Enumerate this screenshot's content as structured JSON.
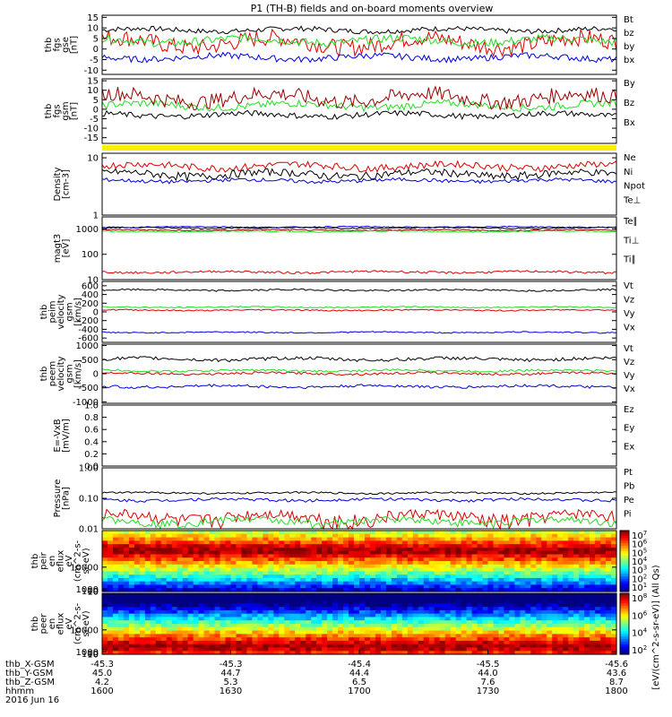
{
  "title": "P1 (TH-B) fields and on-board moments overview",
  "colors": {
    "black": "#000000",
    "red": "#dd0000",
    "green": "#22dd22",
    "blue": "#0000dd",
    "darkred": "#990000",
    "yellow": "#ffee00"
  },
  "chart_data": [
    {
      "type": "line",
      "ylabel": [
        "thb",
        "fgs",
        "gse",
        "[nT]"
      ],
      "yticks": [
        "15",
        "10",
        "5",
        "0",
        "-5",
        "-10"
      ],
      "ylim": [
        -12,
        16
      ],
      "series": [
        {
          "name": "Bt",
          "color": "black",
          "level": 9,
          "noise": 1.2
        },
        {
          "name": "bz",
          "color": "red",
          "level": 3,
          "noise": 4
        },
        {
          "name": "by",
          "color": "green",
          "level": 4,
          "noise": 2
        },
        {
          "name": "bx",
          "color": "blue",
          "level": -4,
          "noise": 1.5
        }
      ]
    },
    {
      "type": "line",
      "ylabel": [
        "thb",
        "fgs",
        "gsm",
        "[nT]"
      ],
      "yticks": [
        "15",
        "10",
        "5",
        "0",
        "-5",
        "-10",
        "-15"
      ],
      "ylim": [
        -18,
        16
      ],
      "series": [
        {
          "name": "By",
          "color": "green",
          "level": 2,
          "noise": 2
        },
        {
          "name": "Bz",
          "color": "darkred",
          "level": 6,
          "noise": 4
        },
        {
          "name": "Bx",
          "color": "black",
          "level": -3,
          "noise": 1.5
        }
      ]
    },
    {
      "type": "line",
      "log": true,
      "ylabel": [
        "Density",
        "[cm-3]"
      ],
      "yticks": [
        "10",
        "1"
      ],
      "yticktrans": [
        10,
        1
      ],
      "ylim": [
        1,
        12
      ],
      "series": [
        {
          "name": "Ne",
          "color": "red",
          "level": 7.2,
          "noise": 1
        },
        {
          "name": "Ni",
          "color": "black",
          "level": 5.2,
          "noise": 0.8
        },
        {
          "name": "Npot",
          "color": "blue",
          "level": 4,
          "noise": 0.3
        },
        {
          "name": "Te⊥",
          "color": "red"
        }
      ]
    },
    {
      "type": "line",
      "log": true,
      "ylabel": [
        "magt3",
        "[eV]"
      ],
      "yticks": [
        "1000",
        "100",
        "10"
      ],
      "yticktrans": [
        1000,
        100,
        10
      ],
      "ylim": [
        10,
        3000
      ],
      "series": [
        {
          "name": "Te∥",
          "color": "black",
          "level": 1100,
          "noise": 60
        },
        {
          "name": "Ti⊥",
          "color": "darkred",
          "level": 900,
          "noise": 50
        },
        {
          "name": "Ti∥",
          "color": "green",
          "level": 800,
          "noise": 40
        },
        {
          "name": "",
          "color": "red",
          "level": 20,
          "noise": 2
        },
        {
          "name": "",
          "color": "blue",
          "level": 1200,
          "noise": 60
        }
      ]
    },
    {
      "type": "line",
      "ylabel": [
        "thb",
        "peim",
        "velocity",
        "gsm",
        "[km/s]"
      ],
      "yticks": [
        "600",
        "400",
        "200",
        "0",
        "-200",
        "-400",
        "-600"
      ],
      "ylim": [
        -700,
        700
      ],
      "series": [
        {
          "name": "Vt",
          "color": "black",
          "level": 500,
          "noise": 20
        },
        {
          "name": "Vz",
          "color": "red",
          "level": 40,
          "noise": 15
        },
        {
          "name": "Vy",
          "color": "green",
          "level": 110,
          "noise": 15
        },
        {
          "name": "Vx",
          "color": "blue",
          "level": -470,
          "noise": 15
        }
      ]
    },
    {
      "type": "line",
      "ylabel": [
        "thb",
        "peem",
        "velocity",
        "gsm",
        "[km/s]"
      ],
      "yticks": [
        "1000",
        "500",
        "0",
        "-500",
        "-1000"
      ],
      "ylim": [
        -1050,
        1050
      ],
      "series": [
        {
          "name": "Vt",
          "color": "black",
          "level": 520,
          "noise": 60
        },
        {
          "name": "Vz",
          "color": "red",
          "level": 10,
          "noise": 40
        },
        {
          "name": "Vy",
          "color": "green",
          "level": 110,
          "noise": 40
        },
        {
          "name": "Vx",
          "color": "blue",
          "level": -450,
          "noise": 50
        }
      ]
    },
    {
      "type": "line",
      "ylabel": [
        "E=-VxB",
        "[mV/m]"
      ],
      "yticks": [
        "1.0",
        "0.8",
        "0.6",
        "0.4",
        "0.2",
        "0.0"
      ],
      "ylim": [
        0,
        1
      ],
      "series": [
        {
          "name": "Ez",
          "color": "red"
        },
        {
          "name": "Ey",
          "color": "green"
        },
        {
          "name": "Ex",
          "color": "blue"
        }
      ]
    },
    {
      "type": "line",
      "log": true,
      "ylabel": [
        "Pressure",
        "[nPa]"
      ],
      "yticks": [
        "1.00",
        "0.10",
        "0.01"
      ],
      "yticktrans": [
        1,
        0.1,
        0.01
      ],
      "ylim": [
        0.01,
        1
      ],
      "series": [
        {
          "name": "Pt",
          "color": "black",
          "level": 0.15,
          "noise": 0.01
        },
        {
          "name": "Pb",
          "color": "red",
          "level": 0.025,
          "noise": 0.012
        },
        {
          "name": "Pe",
          "color": "green",
          "level": 0.018,
          "noise": 0.005
        },
        {
          "name": "Pi",
          "color": "blue",
          "level": 0.09,
          "noise": 0.01
        }
      ]
    },
    {
      "type": "heatmap",
      "ylabel": [
        "thb",
        "peir",
        "en",
        "eflux",
        "eV",
        "(cm^2-s-",
        "sr-eV)"
      ],
      "yticks": [
        "10000",
        "1000",
        "100",
        "10"
      ],
      "yticktrans": [
        10000,
        1000,
        100,
        10
      ],
      "ylim": [
        5,
        25000
      ],
      "colorbar_ticks": [
        "10^7",
        "10^6",
        "10^5",
        "10^4",
        "10^3",
        "10^2",
        "10^1"
      ],
      "peak_energy": 1500
    },
    {
      "type": "heatmap",
      "ylabel": [
        "thb",
        "peer",
        "en",
        "eflux",
        "eV",
        "(cm^2-s-",
        "sr-eV)"
      ],
      "yticks": [
        "10000",
        "1000",
        "100",
        "10"
      ],
      "yticktrans": [
        10000,
        1000,
        100,
        10
      ],
      "ylim": [
        5,
        25000
      ],
      "colorbar_ticks": [
        "10^8",
        "10^6",
        "10^4",
        "10^2"
      ],
      "peak_energy": 15
    }
  ],
  "colorbar_label": "[eV/(cm^2-s-sr-eV)] (All Qs)",
  "x_axis": {
    "rows": [
      {
        "label": "thb_X-GSM",
        "values": [
          "-45.3",
          "-45.3",
          "-45.4",
          "-45.5",
          "-45.6"
        ]
      },
      {
        "label": "thb_Y-GSM",
        "values": [
          "45.0",
          "44.7",
          "44.4",
          "44.0",
          "43.6"
        ]
      },
      {
        "label": "thb_Z-GSM",
        "values": [
          "4.2",
          "5.3",
          "6.5",
          "7.6",
          "8.7"
        ]
      },
      {
        "label": "hhmm",
        "values": [
          "1600",
          "1630",
          "1700",
          "1730",
          "1800"
        ]
      }
    ],
    "date": "2016 Jun 16"
  }
}
